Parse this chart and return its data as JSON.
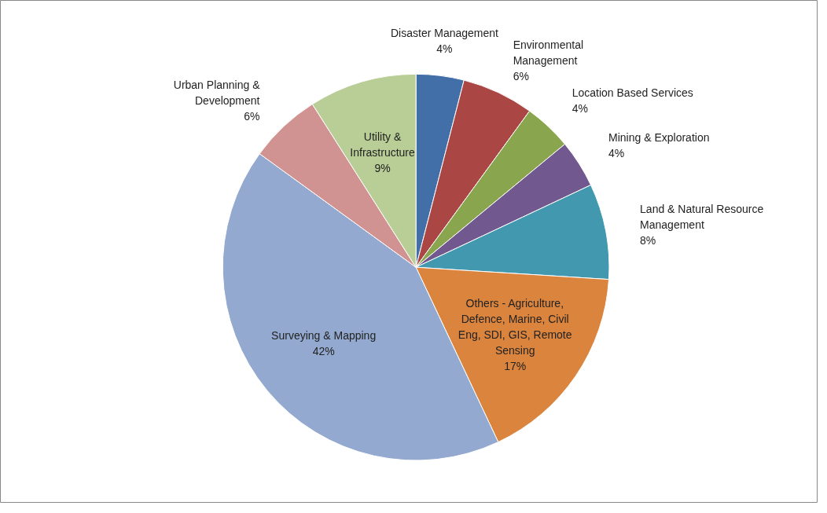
{
  "chart_data": {
    "type": "pie",
    "categories": [
      "Disaster Management",
      "Environmental Management",
      "Location Based Services",
      "Mining & Exploration",
      "Land & Natural Resource Management",
      "Others - Agriculture, Defence, Marine, Civil Eng, SDI, GIS, Remote Sensing",
      "Surveying & Mapping",
      "Urban Planning & Development",
      "Utility & Infrastructure"
    ],
    "values": [
      4,
      6,
      4,
      4,
      8,
      17,
      42,
      6,
      9
    ],
    "value_labels": [
      "4%",
      "6%",
      "4%",
      "4%",
      "8%",
      "17%",
      "42%",
      "6%",
      "9%"
    ],
    "colors": [
      "#426fa7",
      "#aa4644",
      "#89a54e",
      "#71588f",
      "#4198af",
      "#db843d",
      "#93a9cf",
      "#d19392",
      "#b9cd96"
    ]
  }
}
